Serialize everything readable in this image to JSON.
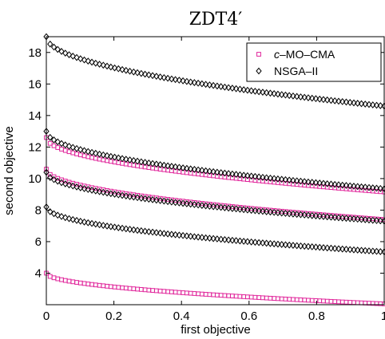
{
  "chart_data": {
    "type": "scatter",
    "title": "ZDT4′",
    "xlabel": "first objective",
    "ylabel": "second objective",
    "xlim": [
      0,
      1
    ],
    "ylim": [
      2,
      19
    ],
    "xticks": [
      0,
      0.2,
      0.4,
      0.6,
      0.8,
      1
    ],
    "xtick_labels": [
      "0",
      "0.2",
      "0.4",
      "0.6",
      "0.8",
      "1"
    ],
    "yticks": [
      4,
      6,
      8,
      10,
      12,
      14,
      16,
      18
    ],
    "ytick_labels": [
      "4",
      "6",
      "8",
      "10",
      "12",
      "14",
      "16",
      "18"
    ],
    "grid": false,
    "legend_position": "top-right",
    "series": [
      {
        "name": "c–MO–CMA",
        "legend_prefix": "c",
        "legend_suffix": "–MO–CMA",
        "marker": "square",
        "color": "#e0249a",
        "fronts": [
          {
            "y0": 12.6,
            "y1": 9.15,
            "n": 90
          },
          {
            "y0": 10.6,
            "y1": 7.4,
            "n": 90
          },
          {
            "y0": 4.0,
            "y1": 2.05,
            "n": 90
          }
        ]
      },
      {
        "name": "NSGA–II",
        "marker": "diamond",
        "color": "#000000",
        "fronts": [
          {
            "y0": 19.0,
            "y1": 14.6,
            "n": 90
          },
          {
            "y0": 13.0,
            "y1": 9.35,
            "n": 90
          },
          {
            "y0": 10.4,
            "y1": 7.3,
            "n": 90
          },
          {
            "y0": 8.2,
            "y1": 5.35,
            "n": 90
          }
        ]
      }
    ]
  }
}
